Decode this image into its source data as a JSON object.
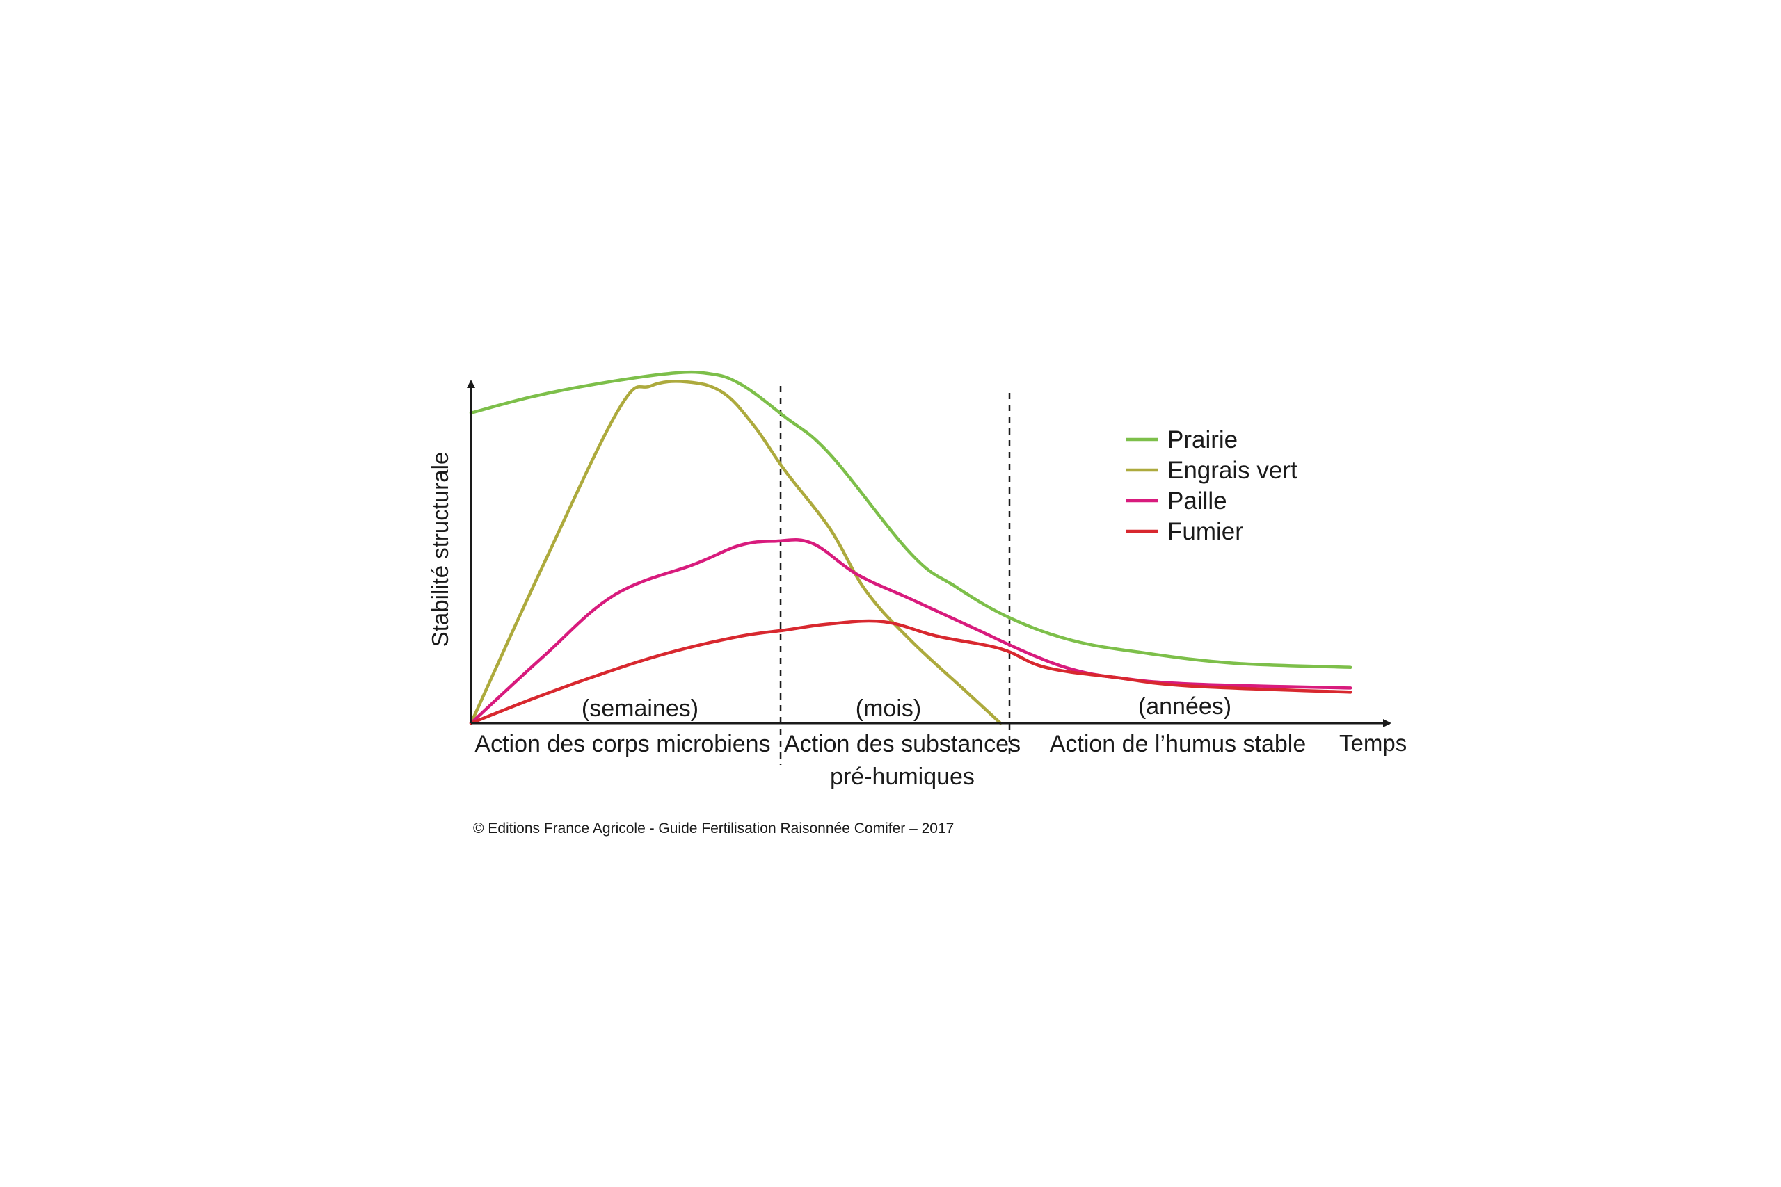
{
  "chart_data": {
    "type": "line",
    "xlabel": "Temps",
    "ylabel": "Stabilité structurale",
    "x_unit_note": "",
    "xlim": [
      0,
      100
    ],
    "ylim": [
      0,
      100
    ],
    "phases": [
      {
        "label": "Action des corps microbiens",
        "label_line2": "",
        "duration": "(semaines)",
        "start": 0,
        "end": 34.5
      },
      {
        "label": "Action des substances",
        "label_line2": "pré-humiques",
        "duration": "(mois)",
        "start": 34.5,
        "end": 60
      },
      {
        "label": "Action de l’humus stable",
        "label_line2": "",
        "duration": "(années)",
        "start": 60,
        "end": 100
      }
    ],
    "series": [
      {
        "name": "Prairie",
        "color": "#7dbf4a",
        "points": [
          [
            0,
            75
          ],
          [
            7,
            79
          ],
          [
            14,
            82
          ],
          [
            22,
            84.5
          ],
          [
            26.5,
            84.5
          ],
          [
            30,
            82
          ],
          [
            35,
            74
          ],
          [
            40,
            65
          ],
          [
            49,
            41
          ],
          [
            54,
            33
          ],
          [
            60,
            25.5
          ],
          [
            67,
            20
          ],
          [
            75,
            17
          ],
          [
            85,
            14.5
          ],
          [
            98,
            13.5
          ]
        ]
      },
      {
        "name": "Engrais vert",
        "color": "#adaa3d",
        "points": [
          [
            0,
            0
          ],
          [
            8,
            38
          ],
          [
            16.5,
            76
          ],
          [
            20,
            81.5
          ],
          [
            24,
            82.5
          ],
          [
            28,
            80
          ],
          [
            31.5,
            72
          ],
          [
            35,
            61
          ],
          [
            40,
            47
          ],
          [
            44,
            32
          ],
          [
            49,
            20
          ],
          [
            55,
            8
          ],
          [
            59,
            0
          ]
        ]
      },
      {
        "name": "Paille",
        "color": "#d81b7d",
        "points": [
          [
            0,
            0
          ],
          [
            8,
            16
          ],
          [
            16,
            31
          ],
          [
            25,
            38.5
          ],
          [
            30,
            43
          ],
          [
            34,
            44
          ],
          [
            38,
            43.5
          ],
          [
            43,
            36
          ],
          [
            49,
            30
          ],
          [
            56,
            23
          ],
          [
            62,
            17
          ],
          [
            67,
            13
          ],
          [
            72,
            11
          ],
          [
            80,
            9.5
          ],
          [
            98,
            8.5
          ]
        ]
      },
      {
        "name": "Fumier",
        "color": "#d8282f",
        "points": [
          [
            0,
            0
          ],
          [
            7,
            6
          ],
          [
            14,
            11.5
          ],
          [
            22,
            17
          ],
          [
            30,
            21
          ],
          [
            35,
            22.5
          ],
          [
            40,
            24
          ],
          [
            46,
            24.5
          ],
          [
            52,
            21
          ],
          [
            59,
            18
          ],
          [
            64,
            13.5
          ],
          [
            72,
            11
          ],
          [
            80,
            9
          ],
          [
            98,
            7.5
          ]
        ]
      }
    ],
    "legend_position": "top-right",
    "grid": false,
    "credit": "© Editions France Agricole - Guide Fertilisation Raisonnée Comifer – 2017"
  }
}
